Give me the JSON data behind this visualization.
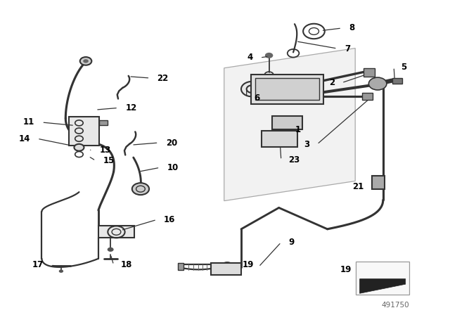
{
  "bg_color": "#ffffff",
  "line_color": "#333333",
  "label_color": "#000000",
  "part_number": "491750",
  "fig_width": 6.4,
  "fig_height": 4.48,
  "dpi": 100
}
